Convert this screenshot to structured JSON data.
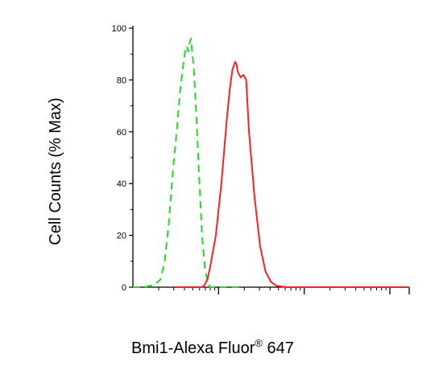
{
  "chart_data": {
    "type": "line",
    "title": "",
    "xlabel": "Bmi1-Alexa Fluor",
    "xlabel_sup": "®",
    "xlabel_suffix": " 647",
    "ylabel": "Cell Counts (% Max)",
    "x_scale": "log",
    "ylim": [
      0,
      100
    ],
    "yticks": [
      0,
      20,
      40,
      60,
      80,
      100
    ],
    "ytick_labels": [
      "0",
      "20",
      "40",
      "60",
      "80",
      "100"
    ],
    "grid": false,
    "series": [
      {
        "style": "dashed",
        "color": "#22dd22",
        "x": [
          0.0,
          0.04,
          0.08,
          0.1,
          0.115,
          0.13,
          0.145,
          0.16,
          0.17,
          0.18,
          0.19,
          0.195,
          0.2,
          0.205,
          0.21,
          0.215,
          0.22,
          0.23,
          0.24,
          0.25,
          0.26,
          0.27,
          0.28,
          0.29,
          0.3,
          0.32,
          0.35,
          0.4
        ],
        "y": [
          0,
          0,
          1,
          3,
          10,
          25,
          45,
          62,
          75,
          84,
          92,
          93,
          91,
          94,
          96,
          90,
          85,
          65,
          42,
          20,
          8,
          2,
          0,
          0,
          0,
          0,
          0,
          0
        ]
      },
      {
        "style": "solid",
        "color": "#ff2020",
        "x": [
          0.15,
          0.25,
          0.26,
          0.27,
          0.28,
          0.3,
          0.32,
          0.34,
          0.35,
          0.36,
          0.37,
          0.375,
          0.38,
          0.39,
          0.4,
          0.41,
          0.42,
          0.44,
          0.46,
          0.48,
          0.5,
          0.52,
          0.56,
          0.65,
          0.8,
          1.0
        ],
        "y": [
          0,
          0,
          1,
          3,
          8,
          20,
          40,
          65,
          76,
          84,
          87,
          86,
          83,
          81,
          82,
          80,
          60,
          35,
          16,
          6,
          2,
          0.5,
          0,
          0,
          0,
          0
        ]
      }
    ]
  }
}
